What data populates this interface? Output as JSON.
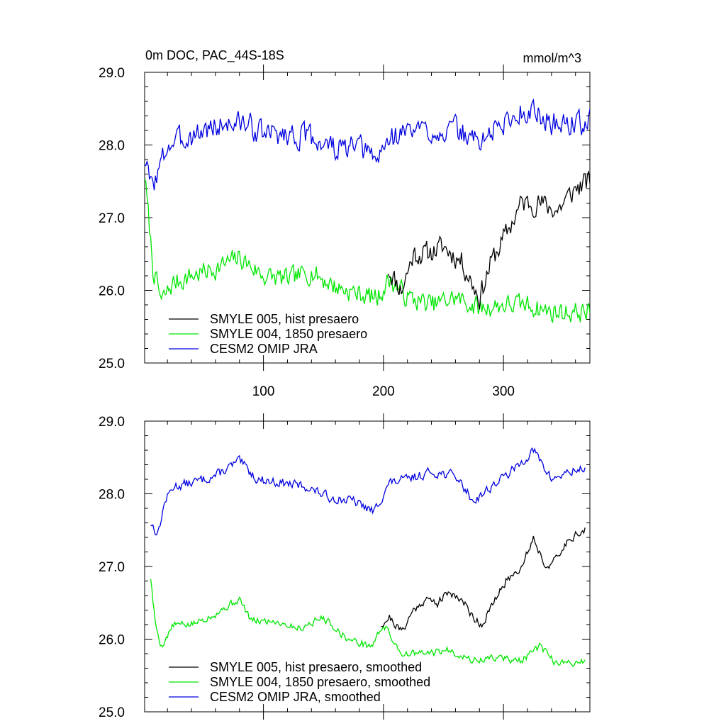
{
  "header": {
    "left_title": "0m DOC, PAC_44S-18S",
    "right_title": "mmol/m^3"
  },
  "colors": {
    "hist": "#000000",
    "y1850": "#00e600",
    "omip": "#0000e0"
  },
  "chart_data": [
    {
      "type": "line",
      "panel": "top",
      "xlim": [
        1,
        372
      ],
      "ylim": [
        25.0,
        29.0
      ],
      "x_ticks": [
        100,
        200,
        300
      ],
      "x_tick_labels": [
        "100",
        "200",
        "300"
      ],
      "y_ticks": [
        25.0,
        26.0,
        27.0,
        28.0,
        29.0
      ],
      "y_tick_labels": [
        "25.0",
        "26.0",
        "27.0",
        "28.0",
        "29.0"
      ],
      "legend_position": "bottom-left",
      "series": [
        {
          "name": "SMYLE 005, hist presaero",
          "color": "hist",
          "x_start": 204,
          "x_end": 372,
          "anchors": [
            [
              204,
              26.3
            ],
            [
              215,
              26.0
            ],
            [
              225,
              26.5
            ],
            [
              235,
              26.5
            ],
            [
              250,
              26.6
            ],
            [
              265,
              26.4
            ],
            [
              280,
              25.9
            ],
            [
              290,
              26.4
            ],
            [
              300,
              26.7
            ],
            [
              315,
              27.2
            ],
            [
              330,
              27.2
            ],
            [
              345,
              27.1
            ],
            [
              360,
              27.4
            ],
            [
              372,
              27.5
            ]
          ],
          "noise": 0.22,
          "seed": 11
        },
        {
          "name": "SMYLE 004, 1850 presaero",
          "color": "y1850",
          "x_start": 1,
          "x_end": 372,
          "anchors": [
            [
              1,
              27.6
            ],
            [
              8,
              26.3
            ],
            [
              15,
              25.85
            ],
            [
              25,
              26.1
            ],
            [
              40,
              26.2
            ],
            [
              60,
              26.3
            ],
            [
              80,
              26.45
            ],
            [
              100,
              26.2
            ],
            [
              120,
              26.15
            ],
            [
              140,
              26.25
            ],
            [
              160,
              26.05
            ],
            [
              180,
              25.95
            ],
            [
              195,
              25.9
            ],
            [
              205,
              26.15
            ],
            [
              220,
              25.9
            ],
            [
              240,
              25.8
            ],
            [
              260,
              25.9
            ],
            [
              280,
              25.75
            ],
            [
              300,
              25.8
            ],
            [
              320,
              25.8
            ],
            [
              340,
              25.7
            ],
            [
              372,
              25.7
            ]
          ],
          "noise": 0.2,
          "seed": 7
        },
        {
          "name": "CESM2 OMIP JRA",
          "color": "omip",
          "x_start": 1,
          "x_end": 372,
          "anchors": [
            [
              1,
              27.8
            ],
            [
              6,
              27.45
            ],
            [
              12,
              27.6
            ],
            [
              20,
              28.0
            ],
            [
              35,
              28.1
            ],
            [
              50,
              28.2
            ],
            [
              70,
              28.3
            ],
            [
              85,
              28.3
            ],
            [
              100,
              28.15
            ],
            [
              120,
              28.15
            ],
            [
              140,
              28.1
            ],
            [
              160,
              27.95
            ],
            [
              180,
              27.95
            ],
            [
              195,
              27.8
            ],
            [
              205,
              28.1
            ],
            [
              220,
              28.2
            ],
            [
              240,
              28.2
            ],
            [
              260,
              28.2
            ],
            [
              280,
              28.05
            ],
            [
              300,
              28.3
            ],
            [
              320,
              28.5
            ],
            [
              340,
              28.3
            ],
            [
              372,
              28.3
            ]
          ],
          "noise": 0.24,
          "seed": 3
        }
      ]
    },
    {
      "type": "line",
      "panel": "bottom",
      "xlim": [
        1,
        372
      ],
      "ylim": [
        25.0,
        29.0
      ],
      "x_ticks": [
        100,
        200,
        300
      ],
      "y_ticks": [
        25.0,
        26.0,
        27.0,
        28.0,
        29.0
      ],
      "y_tick_labels": [
        "25.0",
        "26.0",
        "27.0",
        "28.0",
        "29.0"
      ],
      "legend_position": "bottom-left",
      "series": [
        {
          "name": "SMYLE 005, hist presaero, smoothed",
          "color": "hist",
          "x_start": 198,
          "x_end": 368,
          "anchors": [
            [
              198,
              26.2
            ],
            [
              205,
              26.3
            ],
            [
              215,
              26.1
            ],
            [
              225,
              26.4
            ],
            [
              235,
              26.55
            ],
            [
              245,
              26.5
            ],
            [
              255,
              26.65
            ],
            [
              265,
              26.55
            ],
            [
              275,
              26.3
            ],
            [
              282,
              26.2
            ],
            [
              292,
              26.5
            ],
            [
              302,
              26.8
            ],
            [
              315,
              27.0
            ],
            [
              325,
              27.4
            ],
            [
              335,
              27.0
            ],
            [
              345,
              27.1
            ],
            [
              355,
              27.4
            ],
            [
              368,
              27.5
            ]
          ],
          "noise": 0.08,
          "seed": 21
        },
        {
          "name": "SMYLE 004, 1850 presaero, smoothed",
          "color": "y1850",
          "x_start": 6,
          "x_end": 368,
          "anchors": [
            [
              6,
              26.85
            ],
            [
              10,
              26.2
            ],
            [
              15,
              25.9
            ],
            [
              25,
              26.2
            ],
            [
              40,
              26.2
            ],
            [
              60,
              26.35
            ],
            [
              80,
              26.55
            ],
            [
              90,
              26.25
            ],
            [
              110,
              26.25
            ],
            [
              130,
              26.15
            ],
            [
              150,
              26.3
            ],
            [
              170,
              26.0
            ],
            [
              190,
              25.9
            ],
            [
              200,
              26.2
            ],
            [
              215,
              25.8
            ],
            [
              235,
              25.8
            ],
            [
              255,
              25.85
            ],
            [
              275,
              25.7
            ],
            [
              295,
              25.75
            ],
            [
              315,
              25.7
            ],
            [
              330,
              25.9
            ],
            [
              345,
              25.65
            ],
            [
              368,
              25.7
            ]
          ],
          "noise": 0.07,
          "seed": 5
        },
        {
          "name": "CESM2 OMIP JRA, smoothed",
          "color": "omip",
          "x_start": 6,
          "x_end": 368,
          "anchors": [
            [
              6,
              27.6
            ],
            [
              12,
              27.45
            ],
            [
              18,
              27.9
            ],
            [
              25,
              28.1
            ],
            [
              40,
              28.15
            ],
            [
              60,
              28.25
            ],
            [
              80,
              28.45
            ],
            [
              95,
              28.2
            ],
            [
              115,
              28.15
            ],
            [
              135,
              28.1
            ],
            [
              155,
              27.95
            ],
            [
              175,
              27.9
            ],
            [
              192,
              27.75
            ],
            [
              205,
              28.15
            ],
            [
              220,
              28.2
            ],
            [
              240,
              28.3
            ],
            [
              260,
              28.25
            ],
            [
              275,
              27.9
            ],
            [
              290,
              28.1
            ],
            [
              310,
              28.35
            ],
            [
              325,
              28.6
            ],
            [
              340,
              28.2
            ],
            [
              355,
              28.3
            ],
            [
              368,
              28.35
            ]
          ],
          "noise": 0.09,
          "seed": 13
        }
      ]
    }
  ]
}
